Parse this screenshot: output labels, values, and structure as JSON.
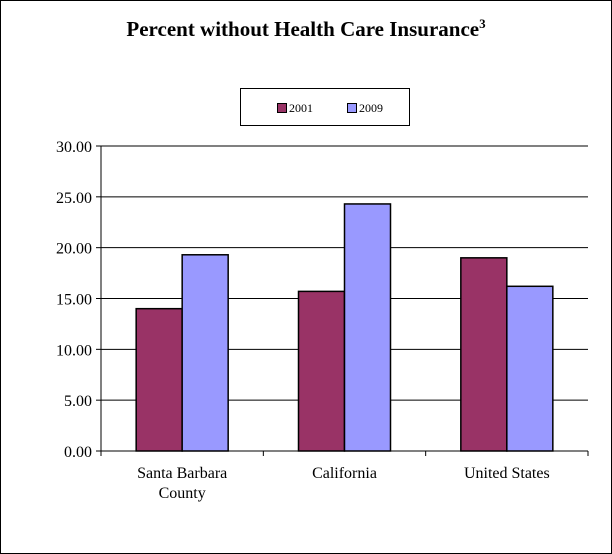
{
  "chart_data": {
    "type": "bar",
    "title": "Percent without Health Care Insurance",
    "title_superscript": "3",
    "categories": [
      [
        "Santa Barbara",
        "County"
      ],
      [
        "California"
      ],
      [
        "United States"
      ]
    ],
    "series": [
      {
        "name": "2001",
        "color": "#993366",
        "values": [
          14.0,
          15.7,
          19.0
        ]
      },
      {
        "name": "2009",
        "color": "#9999FF",
        "values": [
          19.3,
          24.3,
          16.2
        ]
      }
    ],
    "y_ticks": [
      "0.00",
      "5.00",
      "10.00",
      "15.00",
      "20.00",
      "25.00",
      "30.00"
    ],
    "ylim": [
      0,
      30
    ],
    "grid": true,
    "legend_position": "top-center"
  }
}
